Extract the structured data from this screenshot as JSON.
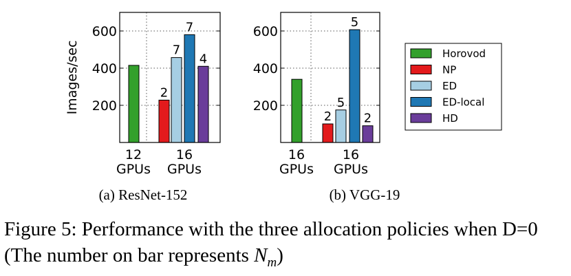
{
  "colors": {
    "Horovod": "#33a02c",
    "NP": "#e31a1c",
    "ED": "#a6cee3",
    "ED-local": "#1f78b4",
    "HD": "#6a3d9a"
  },
  "legend": [
    "Horovod",
    "NP",
    "ED",
    "ED-local",
    "HD"
  ],
  "caption": {
    "main": "Figure 5: Performance with the three allocation policies when D=0 (The number on bar represents ",
    "var": "N",
    "sub": "m",
    "end": ")"
  },
  "chart_data": [
    {
      "type": "bar",
      "subcaption": "(a)  ResNet-152",
      "ylabel": "Images/sec",
      "ylim": [
        0,
        700
      ],
      "yticks": [
        200,
        400,
        600
      ],
      "grid": "dotted",
      "groups": [
        {
          "label_line1": "12",
          "label_line2": "GPUs",
          "bars": [
            {
              "series": "Horovod",
              "value": 415
            }
          ]
        },
        {
          "label_line1": "16",
          "label_line2": "GPUs",
          "bars": [
            {
              "series": "NP",
              "value": 228,
              "nm": "2"
            },
            {
              "series": "ED",
              "value": 457,
              "nm": "7"
            },
            {
              "series": "ED-local",
              "value": 580,
              "nm": "7"
            },
            {
              "series": "HD",
              "value": 410,
              "nm": "4"
            }
          ]
        }
      ]
    },
    {
      "type": "bar",
      "subcaption": "(b)  VGG-19",
      "ylabel": "",
      "ylim": [
        0,
        700
      ],
      "yticks": [
        200,
        400,
        600
      ],
      "grid": "dotted",
      "groups": [
        {
          "label_line1": "16",
          "label_line2": "GPUs",
          "bars": [
            {
              "series": "Horovod",
              "value": 340
            }
          ]
        },
        {
          "label_line1": "16",
          "label_line2": "GPUs",
          "bars": [
            {
              "series": "NP",
              "value": 100,
              "nm": "2"
            },
            {
              "series": "ED",
              "value": 175,
              "nm": "5"
            },
            {
              "series": "ED-local",
              "value": 607,
              "nm": "5"
            },
            {
              "series": "HD",
              "value": 90,
              "nm": "2"
            }
          ]
        }
      ]
    }
  ]
}
